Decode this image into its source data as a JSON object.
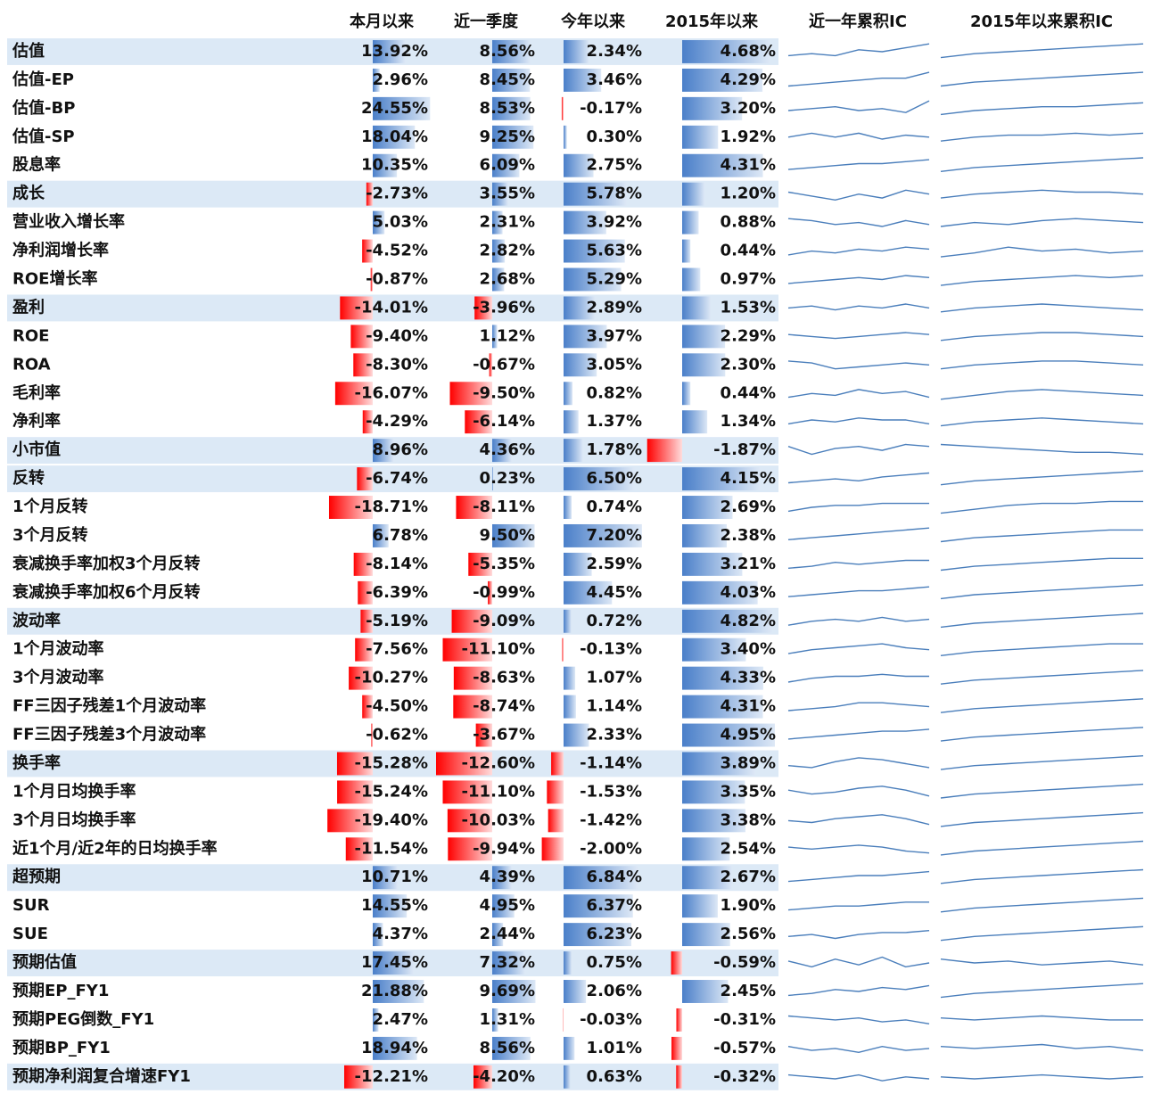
{
  "header": {
    "columns": [
      "本月以来",
      "近一季度",
      "今年以来",
      "2015年以来",
      "近一年累积IC",
      "2015年以来累积IC"
    ]
  },
  "rows": [
    {
      "name": "估值",
      "highlight": true,
      "values": [
        13.92,
        8.56,
        2.34,
        4.68
      ],
      "labels": [
        "13.92%",
        "8.56%",
        "2.34%",
        "4.68%"
      ],
      "ic1y": [
        3,
        4,
        3,
        6,
        5,
        7,
        9
      ],
      "ic2015": [
        2,
        4,
        5,
        6,
        7,
        8,
        9
      ]
    },
    {
      "name": "估值-EP",
      "values": [
        2.96,
        8.45,
        3.46,
        4.29
      ],
      "labels": [
        "2.96%",
        "8.45%",
        "3.46%",
        "4.29%"
      ],
      "ic1y": [
        2,
        3,
        4,
        5,
        6,
        6,
        9
      ],
      "ic2015": [
        2,
        4,
        5,
        6,
        7,
        8,
        9
      ]
    },
    {
      "name": "估值-BP",
      "values": [
        24.55,
        8.53,
        -0.17,
        3.2
      ],
      "labels": [
        "24.55%",
        "8.53%",
        "-0.17%",
        "3.20%"
      ],
      "ic1y": [
        4,
        5,
        6,
        4,
        5,
        3,
        9
      ],
      "ic2015": [
        2,
        4,
        5,
        6,
        6,
        7,
        8
      ]
    },
    {
      "name": "估值-SP",
      "values": [
        18.04,
        9.25,
        0.3,
        1.92
      ],
      "labels": [
        "18.04%",
        "9.25%",
        "0.30%",
        "1.92%"
      ],
      "ic1y": [
        5,
        7,
        5,
        7,
        4,
        6,
        5
      ],
      "ic2015": [
        3,
        5,
        6,
        6,
        7,
        6,
        7
      ]
    },
    {
      "name": "股息率",
      "values": [
        10.35,
        6.09,
        2.75,
        4.31
      ],
      "labels": [
        "10.35%",
        "6.09%",
        "2.75%",
        "4.31%"
      ],
      "ic1y": [
        3,
        4,
        5,
        6,
        6,
        7,
        8
      ],
      "ic2015": [
        2,
        4,
        5,
        6,
        7,
        8,
        9
      ]
    },
    {
      "name": "成长",
      "highlight": true,
      "values": [
        -2.73,
        3.55,
        5.78,
        1.2
      ],
      "labels": [
        "-2.73%",
        "3.55%",
        "5.78%",
        "1.20%"
      ],
      "ic1y": [
        6,
        4,
        2,
        5,
        3,
        7,
        5
      ],
      "ic2015": [
        3,
        5,
        6,
        7,
        6,
        6,
        5
      ]
    },
    {
      "name": "营业收入增长率",
      "values": [
        5.03,
        2.31,
        3.92,
        0.88
      ],
      "labels": [
        "5.03%",
        "2.31%",
        "3.92%",
        "0.88%"
      ],
      "ic1y": [
        7,
        6,
        4,
        5,
        3,
        6,
        4
      ],
      "ic2015": [
        3,
        5,
        4,
        6,
        7,
        6,
        5
      ]
    },
    {
      "name": "净利润增长率",
      "values": [
        -4.52,
        2.82,
        5.63,
        0.44
      ],
      "labels": [
        "-4.52%",
        "2.82%",
        "5.63%",
        "0.44%"
      ],
      "ic1y": [
        3,
        5,
        4,
        6,
        5,
        7,
        6
      ],
      "ic2015": [
        2,
        4,
        7,
        5,
        6,
        4,
        5
      ]
    },
    {
      "name": "ROE增长率",
      "values": [
        -0.87,
        2.68,
        5.29,
        0.97
      ],
      "labels": [
        "-0.87%",
        "2.68%",
        "5.29%",
        "0.97%"
      ],
      "ic1y": [
        3,
        4,
        5,
        6,
        5,
        7,
        6
      ],
      "ic2015": [
        2,
        4,
        5,
        6,
        7,
        6,
        7
      ]
    },
    {
      "name": "盈利",
      "highlight": true,
      "values": [
        -14.01,
        -3.96,
        2.89,
        1.53
      ],
      "labels": [
        "-14.01%",
        "-3.96%",
        "2.89%",
        "1.53%"
      ],
      "ic1y": [
        5,
        6,
        4,
        6,
        5,
        7,
        5
      ],
      "ic2015": [
        3,
        5,
        6,
        7,
        6,
        5,
        4
      ]
    },
    {
      "name": "ROE",
      "values": [
        -9.4,
        1.12,
        3.97,
        2.29
      ],
      "labels": [
        "-9.40%",
        "1.12%",
        "3.97%",
        "2.29%"
      ],
      "ic1y": [
        6,
        5,
        4,
        5,
        6,
        7,
        6
      ],
      "ic2015": [
        3,
        5,
        6,
        7,
        7,
        6,
        5
      ]
    },
    {
      "name": "ROA",
      "values": [
        -8.3,
        -0.67,
        3.05,
        2.3
      ],
      "labels": [
        "-8.30%",
        "-0.67%",
        "3.05%",
        "2.30%"
      ],
      "ic1y": [
        7,
        6,
        3,
        4,
        5,
        6,
        5
      ],
      "ic2015": [
        3,
        5,
        6,
        7,
        7,
        6,
        5
      ]
    },
    {
      "name": "毛利率",
      "values": [
        -16.07,
        -9.5,
        0.82,
        0.44
      ],
      "labels": [
        "-16.07%",
        "-9.50%",
        "0.82%",
        "0.44%"
      ],
      "ic1y": [
        3,
        5,
        4,
        7,
        5,
        6,
        3
      ],
      "ic2015": [
        2,
        4,
        6,
        7,
        6,
        5,
        4
      ]
    },
    {
      "name": "净利率",
      "values": [
        -4.29,
        -6.14,
        1.37,
        1.34
      ],
      "labels": [
        "-4.29%",
        "-6.14%",
        "1.37%",
        "1.34%"
      ],
      "ic1y": [
        4,
        6,
        5,
        7,
        6,
        6,
        4
      ],
      "ic2015": [
        3,
        5,
        6,
        7,
        6,
        5,
        4
      ]
    },
    {
      "name": "小市值",
      "highlight": true,
      "values": [
        8.96,
        4.36,
        1.78,
        -1.87
      ],
      "labels": [
        "8.96%",
        "4.36%",
        "1.78%",
        "-1.87%"
      ],
      "ic1y": [
        7,
        3,
        6,
        7,
        5,
        8,
        7
      ],
      "ic2015": [
        8,
        7,
        6,
        5,
        4,
        4,
        3
      ]
    },
    {
      "name": "反转",
      "highlight": true,
      "values": [
        -6.74,
        0.23,
        6.5,
        4.15
      ],
      "labels": [
        "-6.74%",
        "0.23%",
        "6.50%",
        "4.15%"
      ],
      "ic1y": [
        3,
        4,
        5,
        4,
        6,
        7,
        8
      ],
      "ic2015": [
        2,
        4,
        5,
        6,
        7,
        8,
        9
      ]
    },
    {
      "name": "1个月反转",
      "values": [
        -18.71,
        -8.11,
        0.74,
        2.69
      ],
      "labels": [
        "-18.71%",
        "-8.11%",
        "0.74%",
        "2.69%"
      ],
      "ic1y": [
        3,
        5,
        6,
        6,
        7,
        7,
        7
      ],
      "ic2015": [
        2,
        4,
        6,
        7,
        7,
        8,
        8
      ]
    },
    {
      "name": "3个月反转",
      "values": [
        6.78,
        9.5,
        7.2,
        2.38
      ],
      "labels": [
        "6.78%",
        "9.50%",
        "7.20%",
        "2.38%"
      ],
      "ic1y": [
        3,
        4,
        5,
        6,
        7,
        8,
        9
      ],
      "ic2015": [
        2,
        4,
        5,
        6,
        7,
        8,
        8
      ]
    },
    {
      "name": "衰减换手率加权3个月反转",
      "values": [
        -8.14,
        -5.35,
        2.59,
        3.21
      ],
      "labels": [
        "-8.14%",
        "-5.35%",
        "2.59%",
        "3.21%"
      ],
      "ic1y": [
        3,
        4,
        6,
        5,
        6,
        7,
        7
      ],
      "ic2015": [
        2,
        4,
        5,
        6,
        7,
        8,
        8
      ]
    },
    {
      "name": "衰减换手率加权6个月反转",
      "values": [
        -6.39,
        -0.99,
        4.45,
        4.03
      ],
      "labels": [
        "-6.39%",
        "-0.99%",
        "4.45%",
        "4.03%"
      ],
      "ic1y": [
        3,
        4,
        5,
        6,
        6,
        7,
        8
      ],
      "ic2015": [
        2,
        4,
        5,
        6,
        7,
        8,
        9
      ]
    },
    {
      "name": "波动率",
      "highlight": true,
      "values": [
        -5.19,
        -9.09,
        0.72,
        4.82
      ],
      "labels": [
        "-5.19%",
        "-9.09%",
        "0.72%",
        "4.82%"
      ],
      "ic1y": [
        3,
        5,
        6,
        5,
        7,
        5,
        6
      ],
      "ic2015": [
        2,
        4,
        5,
        6,
        7,
        8,
        9
      ]
    },
    {
      "name": "1个月波动率",
      "values": [
        -7.56,
        -11.1,
        -0.13,
        3.4
      ],
      "labels": [
        "-7.56%",
        "-11.10%",
        "-0.13%",
        "3.40%"
      ],
      "ic1y": [
        3,
        5,
        6,
        7,
        8,
        6,
        5
      ],
      "ic2015": [
        2,
        4,
        5,
        6,
        7,
        8,
        8
      ]
    },
    {
      "name": "3个月波动率",
      "values": [
        -10.27,
        -8.63,
        1.07,
        4.33
      ],
      "labels": [
        "-10.27%",
        "-8.63%",
        "1.07%",
        "4.33%"
      ],
      "ic1y": [
        3,
        5,
        6,
        6,
        7,
        6,
        6
      ],
      "ic2015": [
        2,
        4,
        5,
        6,
        7,
        8,
        9
      ]
    },
    {
      "name": "FF三因子残差1个月波动率",
      "values": [
        -4.5,
        -8.74,
        1.14,
        4.31
      ],
      "labels": [
        "-4.50%",
        "-8.74%",
        "1.14%",
        "4.31%"
      ],
      "ic1y": [
        3,
        4,
        5,
        7,
        7,
        6,
        5
      ],
      "ic2015": [
        2,
        4,
        5,
        6,
        7,
        8,
        9
      ]
    },
    {
      "name": "FF三因子残差3个月波动率",
      "values": [
        -0.62,
        -3.67,
        2.33,
        4.95
      ],
      "labels": [
        "-0.62%",
        "-3.67%",
        "2.33%",
        "4.95%"
      ],
      "ic1y": [
        3,
        4,
        5,
        6,
        7,
        7,
        8
      ],
      "ic2015": [
        2,
        4,
        5,
        6,
        7,
        8,
        9
      ]
    },
    {
      "name": "换手率",
      "highlight": true,
      "values": [
        -15.28,
        -12.6,
        -1.14,
        3.89
      ],
      "labels": [
        "-15.28%",
        "-12.60%",
        "-1.14%",
        "3.89%"
      ],
      "ic1y": [
        4,
        3,
        6,
        8,
        7,
        5,
        3
      ],
      "ic2015": [
        2,
        4,
        5,
        6,
        7,
        8,
        9
      ]
    },
    {
      "name": "1个月日均换手率",
      "values": [
        -15.24,
        -11.1,
        -1.53,
        3.35
      ],
      "labels": [
        "-15.24%",
        "-11.10%",
        "-1.53%",
        "3.35%"
      ],
      "ic1y": [
        6,
        4,
        5,
        7,
        8,
        6,
        3
      ],
      "ic2015": [
        2,
        4,
        5,
        6,
        7,
        8,
        9
      ]
    },
    {
      "name": "3个月日均换手率",
      "values": [
        -19.4,
        -10.03,
        -1.42,
        3.38
      ],
      "labels": [
        "-19.40%",
        "-10.03%",
        "-1.42%",
        "3.38%"
      ],
      "ic1y": [
        5,
        4,
        6,
        7,
        8,
        6,
        3
      ],
      "ic2015": [
        2,
        4,
        5,
        6,
        7,
        8,
        9
      ]
    },
    {
      "name": "近1个月/近2年的日均换手率",
      "values": [
        -11.54,
        -9.94,
        -2.0,
        2.54
      ],
      "labels": [
        "-11.54%",
        "-9.94%",
        "-2.00%",
        "2.54%"
      ],
      "ic1y": [
        6,
        5,
        6,
        7,
        6,
        4,
        3
      ],
      "ic2015": [
        2,
        4,
        5,
        6,
        7,
        8,
        9
      ]
    },
    {
      "name": "超预期",
      "highlight": true,
      "values": [
        10.71,
        4.39,
        6.84,
        2.67
      ],
      "labels": [
        "10.71%",
        "4.39%",
        "6.84%",
        "2.67%"
      ],
      "ic1y": [
        3,
        4,
        5,
        6,
        6,
        7,
        8
      ],
      "ic2015": [
        2,
        4,
        5,
        6,
        7,
        8,
        9
      ]
    },
    {
      "name": "SUR",
      "values": [
        14.55,
        4.95,
        6.37,
        1.9
      ],
      "labels": [
        "14.55%",
        "4.95%",
        "6.37%",
        "1.90%"
      ],
      "ic1y": [
        3,
        4,
        5,
        5,
        6,
        7,
        7
      ],
      "ic2015": [
        2,
        4,
        5,
        6,
        7,
        8,
        9
      ]
    },
    {
      "name": "SUE",
      "values": [
        4.37,
        2.44,
        6.23,
        2.56
      ],
      "labels": [
        "4.37%",
        "2.44%",
        "6.23%",
        "2.56%"
      ],
      "ic1y": [
        4,
        5,
        3,
        5,
        6,
        6,
        7
      ],
      "ic2015": [
        2,
        4,
        5,
        6,
        7,
        8,
        9
      ]
    },
    {
      "name": "预期估值",
      "highlight": true,
      "values": [
        17.45,
        7.32,
        0.75,
        -0.59
      ],
      "labels": [
        "17.45%",
        "7.32%",
        "0.75%",
        "-0.59%"
      ],
      "ic1y": [
        6,
        3,
        7,
        4,
        8,
        3,
        5
      ],
      "ic2015": [
        7,
        5,
        6,
        4,
        5,
        6,
        4
      ]
    },
    {
      "name": "预期EP_FY1",
      "values": [
        21.88,
        9.69,
        2.06,
        2.45
      ],
      "labels": [
        "21.88%",
        "9.69%",
        "2.06%",
        "2.45%"
      ],
      "ic1y": [
        3,
        4,
        6,
        5,
        7,
        6,
        8
      ],
      "ic2015": [
        2,
        4,
        5,
        6,
        7,
        8,
        9
      ]
    },
    {
      "name": "预期PEG倒数_FY1",
      "values": [
        2.47,
        1.31,
        -0.03,
        -0.31
      ],
      "labels": [
        "2.47%",
        "1.31%",
        "-0.03%",
        "-0.31%"
      ],
      "ic1y": [
        7,
        6,
        5,
        6,
        4,
        5,
        3
      ],
      "ic2015": [
        6,
        5,
        6,
        7,
        6,
        5,
        5
      ]
    },
    {
      "name": "预期BP_FY1",
      "values": [
        18.94,
        8.56,
        1.01,
        -0.57
      ],
      "labels": [
        "18.94%",
        "8.56%",
        "1.01%",
        "-0.57%"
      ],
      "ic1y": [
        6,
        4,
        5,
        3,
        6,
        4,
        5
      ],
      "ic2015": [
        6,
        5,
        6,
        7,
        5,
        6,
        4
      ]
    },
    {
      "name": "预期净利润复合增速FY1",
      "highlight": true,
      "values": [
        -12.21,
        -4.2,
        0.63,
        -0.32
      ],
      "labels": [
        "-12.21%",
        "-4.20%",
        "0.63%",
        "-0.32%"
      ],
      "ic1y": [
        6,
        5,
        4,
        6,
        3,
        5,
        4
      ],
      "ic2015": [
        5,
        4,
        5,
        6,
        5,
        4,
        5
      ]
    }
  ]
}
